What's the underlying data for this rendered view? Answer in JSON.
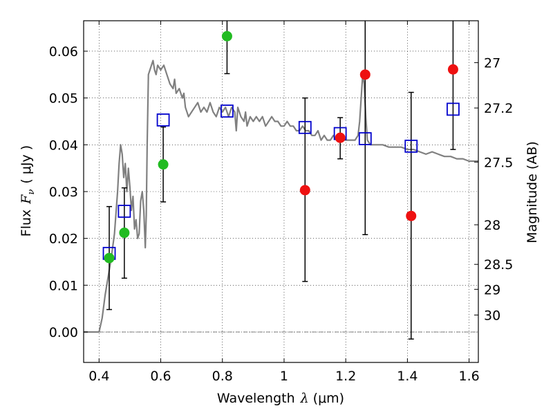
{
  "chart_data": {
    "type": "scatter",
    "xlabel": {
      "prefix": "Wavelength",
      "symbol": "λ",
      "unit": "(μm)"
    },
    "ylabel": {
      "prefix": "Flux",
      "symbol": "F",
      "subscript": "ν",
      "unit": "( μJy )"
    },
    "y2label": "Magnitude (AB)",
    "xlim": [
      0.35,
      1.63
    ],
    "ylim": [
      -0.0065,
      0.0665
    ],
    "x_ticks": [
      0.4,
      0.6,
      0.8,
      1.0,
      1.2,
      1.4,
      1.6
    ],
    "x_tick_labels": [
      "0.4",
      "0.6",
      "0.8",
      "1",
      "1.2",
      "1.4",
      "1.6"
    ],
    "y_ticks": [
      0.0,
      0.01,
      0.02,
      0.03,
      0.04,
      0.05,
      0.06
    ],
    "y_tick_labels": [
      "0.00",
      "0.01",
      "0.02",
      "0.03",
      "0.04",
      "0.05",
      "0.06"
    ],
    "mag_ticks": [
      {
        "label": "27",
        "mag": 27.0
      },
      {
        "label": "27.2",
        "mag": 27.2
      },
      {
        "label": "27.5",
        "mag": 27.5
      },
      {
        "label": "28",
        "mag": 28.0
      },
      {
        "label": "28.5",
        "mag": 28.5
      },
      {
        "label": "29",
        "mag": 29.0
      },
      {
        "label": "30",
        "mag": 30.0
      }
    ],
    "grid": true,
    "colors": {
      "sed": "#808080",
      "green": "#22bb22",
      "red": "#ee1111",
      "model_box": "#0000cc",
      "errorbar": "#000000"
    },
    "sed_curve": [
      [
        0.35,
        0.0
      ],
      [
        0.39,
        0.0
      ],
      [
        0.4,
        0.0
      ],
      [
        0.41,
        0.003
      ],
      [
        0.42,
        0.008
      ],
      [
        0.43,
        0.012
      ],
      [
        0.44,
        0.016
      ],
      [
        0.45,
        0.021
      ],
      [
        0.46,
        0.03
      ],
      [
        0.465,
        0.036
      ],
      [
        0.47,
        0.04
      ],
      [
        0.475,
        0.038
      ],
      [
        0.48,
        0.033
      ],
      [
        0.485,
        0.036
      ],
      [
        0.49,
        0.03
      ],
      [
        0.495,
        0.035
      ],
      [
        0.5,
        0.031
      ],
      [
        0.505,
        0.026
      ],
      [
        0.51,
        0.029
      ],
      [
        0.515,
        0.022
      ],
      [
        0.52,
        0.024
      ],
      [
        0.525,
        0.02
      ],
      [
        0.53,
        0.021
      ],
      [
        0.535,
        0.028
      ],
      [
        0.54,
        0.03
      ],
      [
        0.545,
        0.026
      ],
      [
        0.55,
        0.018
      ],
      [
        0.553,
        0.025
      ],
      [
        0.556,
        0.04
      ],
      [
        0.56,
        0.055
      ],
      [
        0.565,
        0.056
      ],
      [
        0.57,
        0.057
      ],
      [
        0.575,
        0.058
      ],
      [
        0.58,
        0.056
      ],
      [
        0.585,
        0.055
      ],
      [
        0.59,
        0.057
      ],
      [
        0.6,
        0.056
      ],
      [
        0.61,
        0.057
      ],
      [
        0.62,
        0.055
      ],
      [
        0.63,
        0.053
      ],
      [
        0.64,
        0.052
      ],
      [
        0.645,
        0.054
      ],
      [
        0.65,
        0.051
      ],
      [
        0.66,
        0.052
      ],
      [
        0.67,
        0.05
      ],
      [
        0.675,
        0.051
      ],
      [
        0.68,
        0.048
      ],
      [
        0.69,
        0.046
      ],
      [
        0.7,
        0.047
      ],
      [
        0.71,
        0.048
      ],
      [
        0.72,
        0.049
      ],
      [
        0.73,
        0.047
      ],
      [
        0.74,
        0.048
      ],
      [
        0.75,
        0.047
      ],
      [
        0.76,
        0.049
      ],
      [
        0.77,
        0.047
      ],
      [
        0.78,
        0.046
      ],
      [
        0.79,
        0.048
      ],
      [
        0.8,
        0.047
      ],
      [
        0.81,
        0.048
      ],
      [
        0.82,
        0.046
      ],
      [
        0.83,
        0.048
      ],
      [
        0.84,
        0.047
      ],
      [
        0.845,
        0.043
      ],
      [
        0.85,
        0.048
      ],
      [
        0.86,
        0.046
      ],
      [
        0.87,
        0.045
      ],
      [
        0.875,
        0.047
      ],
      [
        0.88,
        0.044
      ],
      [
        0.89,
        0.046
      ],
      [
        0.9,
        0.045
      ],
      [
        0.91,
        0.046
      ],
      [
        0.92,
        0.045
      ],
      [
        0.93,
        0.046
      ],
      [
        0.94,
        0.044
      ],
      [
        0.95,
        0.045
      ],
      [
        0.96,
        0.046
      ],
      [
        0.97,
        0.045
      ],
      [
        0.98,
        0.045
      ],
      [
        0.99,
        0.044
      ],
      [
        1.0,
        0.044
      ],
      [
        1.01,
        0.045
      ],
      [
        1.02,
        0.044
      ],
      [
        1.03,
        0.044
      ],
      [
        1.04,
        0.043
      ],
      [
        1.05,
        0.043
      ],
      [
        1.06,
        0.044
      ],
      [
        1.07,
        0.043
      ],
      [
        1.08,
        0.043
      ],
      [
        1.09,
        0.042
      ],
      [
        1.1,
        0.042
      ],
      [
        1.11,
        0.043
      ],
      [
        1.12,
        0.041
      ],
      [
        1.13,
        0.042
      ],
      [
        1.14,
        0.041
      ],
      [
        1.15,
        0.041
      ],
      [
        1.16,
        0.042
      ],
      [
        1.17,
        0.041
      ],
      [
        1.18,
        0.041
      ],
      [
        1.19,
        0.041
      ],
      [
        1.2,
        0.041
      ],
      [
        1.21,
        0.041
      ],
      [
        1.22,
        0.041
      ],
      [
        1.23,
        0.041
      ],
      [
        1.24,
        0.042
      ],
      [
        1.245,
        0.045
      ],
      [
        1.25,
        0.05
      ],
      [
        1.255,
        0.055
      ],
      [
        1.26,
        0.053
      ],
      [
        1.265,
        0.046
      ],
      [
        1.27,
        0.041
      ],
      [
        1.28,
        0.04
      ],
      [
        1.3,
        0.04
      ],
      [
        1.32,
        0.04
      ],
      [
        1.34,
        0.0395
      ],
      [
        1.36,
        0.0395
      ],
      [
        1.38,
        0.0395
      ],
      [
        1.4,
        0.039
      ],
      [
        1.42,
        0.039
      ],
      [
        1.44,
        0.0385
      ],
      [
        1.46,
        0.038
      ],
      [
        1.48,
        0.0385
      ],
      [
        1.5,
        0.038
      ],
      [
        1.52,
        0.0375
      ],
      [
        1.54,
        0.0375
      ],
      [
        1.56,
        0.037
      ],
      [
        1.58,
        0.037
      ],
      [
        1.6,
        0.0365
      ],
      [
        1.63,
        0.0365
      ]
    ],
    "green_points": [
      {
        "x": 0.433,
        "y": 0.0158
      },
      {
        "x": 0.482,
        "y": 0.0212
      },
      {
        "x": 0.608,
        "y": 0.0358
      },
      {
        "x": 0.815,
        "y": 0.0632
      }
    ],
    "red_points": [
      {
        "x": 1.068,
        "y": 0.0303
      },
      {
        "x": 1.182,
        "y": 0.0415
      },
      {
        "x": 1.263,
        "y": 0.055
      },
      {
        "x": 1.412,
        "y": 0.0248
      },
      {
        "x": 1.548,
        "y": 0.0561
      }
    ],
    "model_boxes": [
      {
        "x": 0.433,
        "y": 0.0168
      },
      {
        "x": 0.482,
        "y": 0.0258
      },
      {
        "x": 0.608,
        "y": 0.0453
      },
      {
        "x": 0.815,
        "y": 0.0472
      },
      {
        "x": 1.068,
        "y": 0.0437
      },
      {
        "x": 1.182,
        "y": 0.0424
      },
      {
        "x": 1.263,
        "y": 0.0413
      },
      {
        "x": 1.412,
        "y": 0.0397
      },
      {
        "x": 1.548,
        "y": 0.0476
      }
    ],
    "error_bars": [
      {
        "x": 0.433,
        "low": 0.0048,
        "high": 0.0268
      },
      {
        "x": 0.482,
        "low": 0.0115,
        "high": 0.0308
      },
      {
        "x": 0.608,
        "low": 0.0278,
        "high": 0.0438
      },
      {
        "x": 0.815,
        "low": 0.0552,
        "high": 0.0665
      },
      {
        "x": 1.068,
        "low": 0.0108,
        "high": 0.05
      },
      {
        "x": 1.182,
        "low": 0.037,
        "high": 0.0458
      },
      {
        "x": 1.263,
        "low": 0.0208,
        "high": 0.0665
      },
      {
        "x": 1.412,
        "low": -0.0015,
        "high": 0.0512
      },
      {
        "x": 1.548,
        "low": 0.039,
        "high": 0.0665
      }
    ]
  }
}
